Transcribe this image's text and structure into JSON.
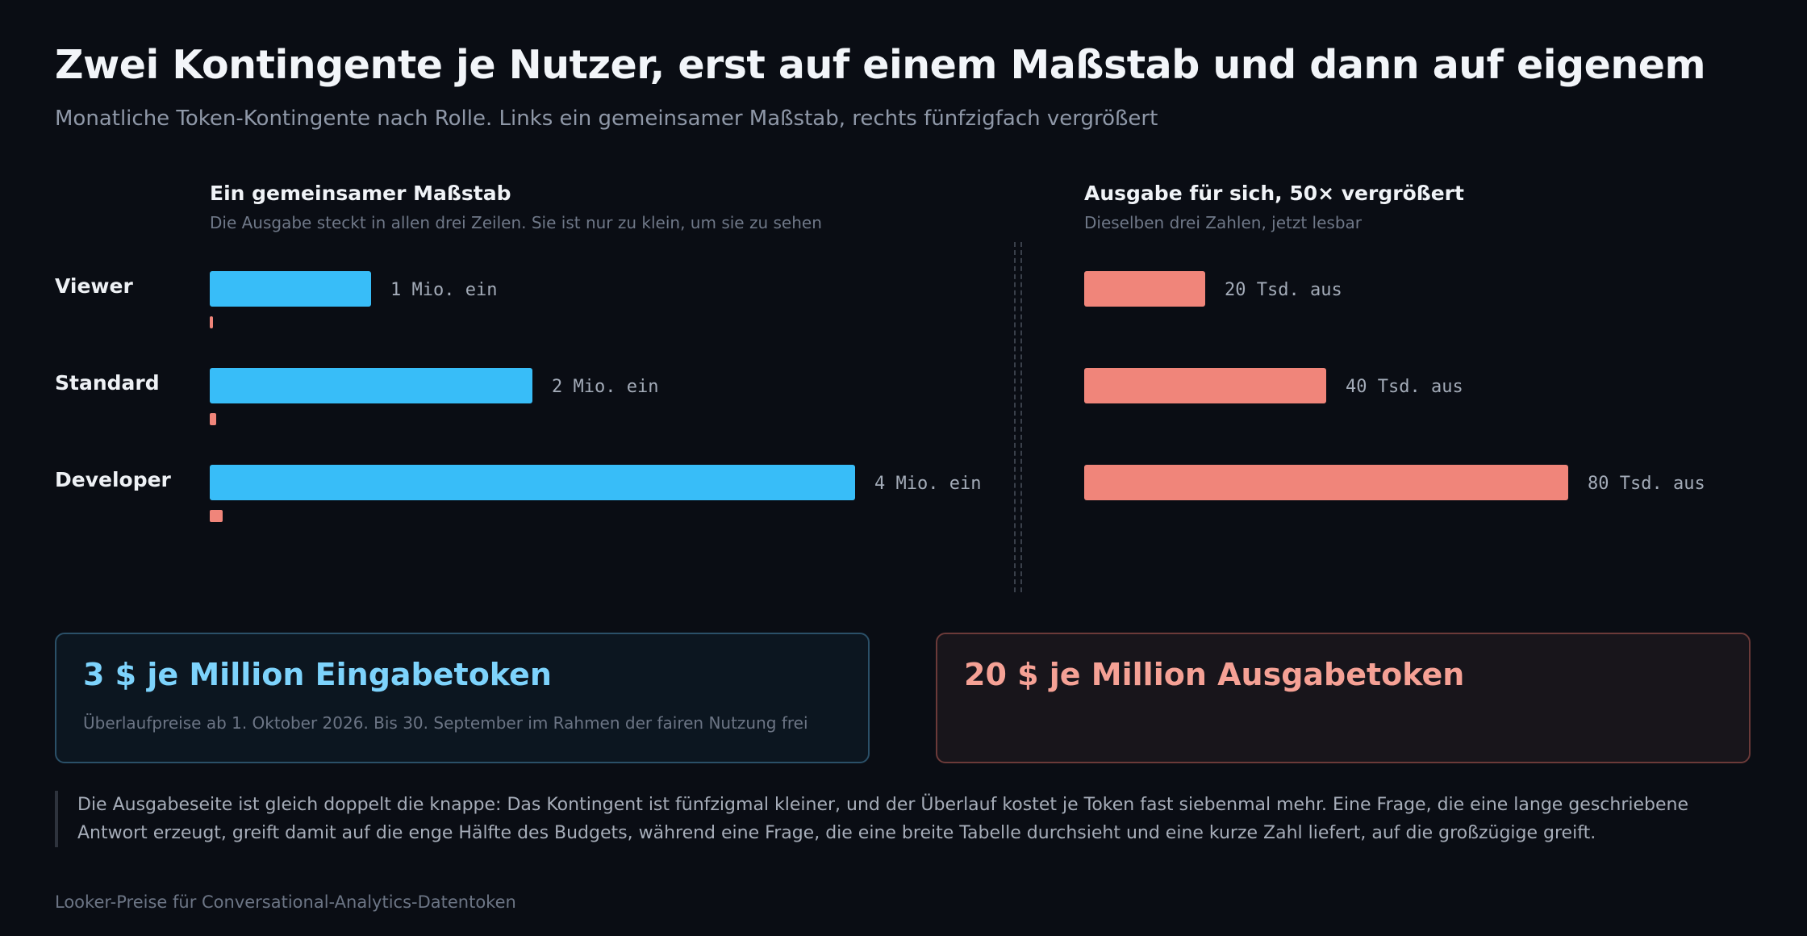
{
  "title": "Zwei Kontingente je Nutzer, erst auf einem Maßstab und dann auf eigenem",
  "subtitle": "Monatliche Token-Kontingente nach Rolle. Links ein gemeinsamer Maßstab, rechts fünfzigfach vergrößert",
  "left_panel": {
    "heading": "Ein gemeinsamer Maßstab",
    "subheading": "Die Ausgabe steckt in allen drei Zeilen. Sie ist nur zu klein, um sie zu sehen"
  },
  "right_panel": {
    "heading": "Ausgabe für sich, 50× vergrößert",
    "subheading": "Dieselben drei Zahlen, jetzt lesbar"
  },
  "colors": {
    "input": "#38bdf8",
    "output": "#f0857a",
    "input_title": "#7dd3fc",
    "output_title": "#f5a195"
  },
  "chart_data": [
    {
      "type": "bar",
      "orientation": "horizontal",
      "categories": [
        "Viewer",
        "Standard",
        "Developer"
      ],
      "series": [
        {
          "name": "ein",
          "values": [
            1000000,
            2000000,
            4000000
          ],
          "labels": [
            "1 Mio. ein",
            "2 Mio. ein",
            "4 Mio. ein"
          ]
        },
        {
          "name": "aus",
          "values": [
            20000,
            40000,
            80000
          ]
        }
      ],
      "title": "Ein gemeinsamer Maßstab",
      "subtitle": "Die Ausgabe steckt in allen drei Zeilen. Sie ist nur zu klein, um sie zu sehen",
      "xlim": [
        0,
        4000000
      ]
    },
    {
      "type": "bar",
      "orientation": "horizontal",
      "categories": [
        "Viewer",
        "Standard",
        "Developer"
      ],
      "series": [
        {
          "name": "aus",
          "values": [
            20000,
            40000,
            80000
          ],
          "labels": [
            "20 Tsd. aus",
            "40 Tsd. aus",
            "80 Tsd. aus"
          ]
        }
      ],
      "title": "Ausgabe für sich, 50× vergrößert",
      "subtitle": "Dieselben drei Zahlen, jetzt lesbar",
      "xlim": [
        0,
        80000
      ]
    }
  ],
  "cards": {
    "input": {
      "title": "3 $ je Million Eingabetoken",
      "subtitle": "Überlaufpreise ab 1. Oktober 2026. Bis 30. September im Rahmen der fairen Nutzung frei"
    },
    "output": {
      "title": "20 $ je Million Ausgabetoken"
    }
  },
  "note": "Die Ausgabeseite ist gleich doppelt die knappe: Das Kontingent ist fünfzigmal kleiner, und der Überlauf kostet je Token fast siebenmal mehr. Eine Frage, die eine lange geschriebene Antwort erzeugt, greift damit auf die enge Hälfte des Budgets, während eine Frage, die eine breite Tabelle durchsieht und eine kurze Zahl liefert, auf die großzügige greift.",
  "footer": "Looker-Preise für Conversational-Analytics-Datentoken"
}
